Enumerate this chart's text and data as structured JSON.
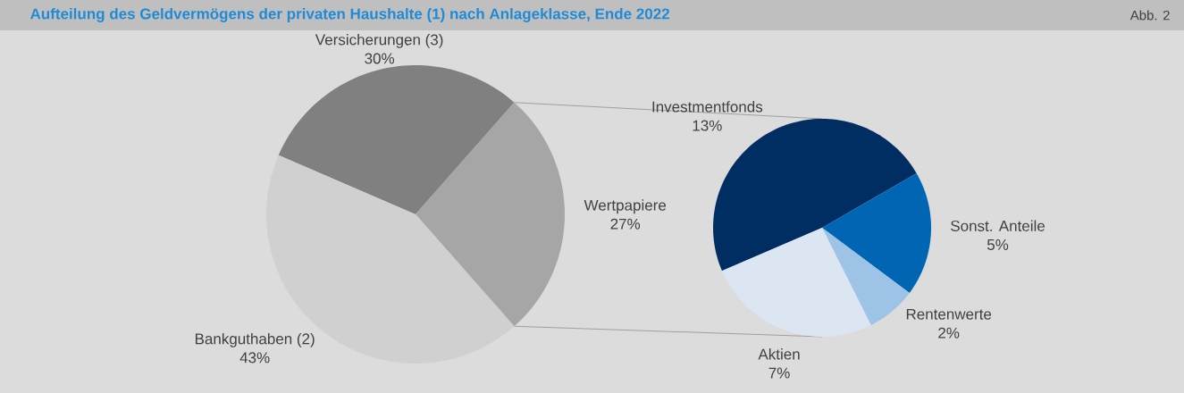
{
  "chart_data": [
    {
      "type": "pie",
      "title": "Aufteilung des Geldvermögens der privaten Haushalte (1) nach Anlageklasse, Ende 2022",
      "annotations": [
        "Abb. 2"
      ],
      "categories": [
        "Versicherungen (3)",
        "Wertpapiere",
        "Bankguthaben (2)"
      ],
      "values": [
        30,
        27,
        43
      ],
      "value_labels": [
        "30%",
        "27%",
        "43%"
      ],
      "colors": [
        "#808080",
        "#a6a6a6",
        "#d0d0d0"
      ]
    },
    {
      "type": "pie",
      "categories": [
        "Investmentfonds",
        "Sonst. Anteile",
        "Rentenwerte",
        "Aktien"
      ],
      "values": [
        13,
        5,
        2,
        7
      ],
      "value_labels": [
        "13%",
        "5%",
        "2%",
        "7%"
      ],
      "colors": [
        "#002d62",
        "#0066b3",
        "#9dc3e6",
        "#dce6f2"
      ]
    }
  ]
}
